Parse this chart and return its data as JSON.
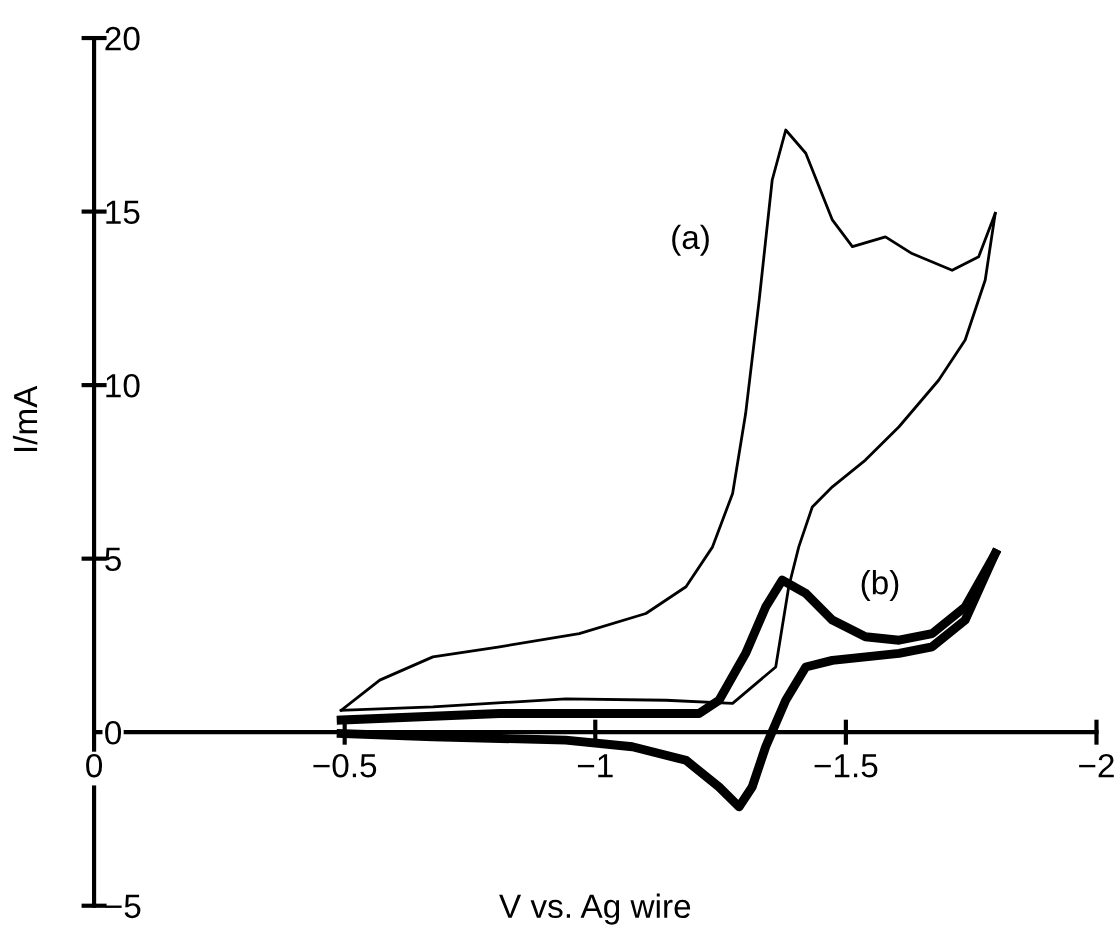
{
  "chart_data": {
    "type": "line",
    "xlabel": "V vs. Ag wire",
    "ylabel": "I/mA",
    "xlim": [
      0,
      -2
    ],
    "ylim": [
      -5,
      20
    ],
    "xticks": [
      0,
      {
        "value": -0.5,
        "label": "−0.5"
      },
      {
        "value": -1,
        "label": "−1"
      },
      {
        "value": -1.5,
        "label": "−1.5"
      },
      {
        "value": -2,
        "label": "−2"
      }
    ],
    "yticks": [
      {
        "value": -5,
        "label": "−5"
      },
      0,
      5,
      10,
      15,
      20
    ],
    "grid": false,
    "legend": false,
    "marker": "none",
    "line_style": "solid",
    "series": [
      {
        "color": "#000000",
        "x": [
          -0.493,
          -0.57,
          -0.676,
          -0.809,
          -0.968,
          -1.101,
          -1.181,
          -1.234,
          -1.274,
          -1.3,
          -1.327,
          -1.353,
          -1.38,
          -1.42,
          -1.473,
          -1.513,
          -1.579,
          -1.632,
          -1.712,
          -1.765,
          -1.798
        ],
        "values": [
          0.63,
          1.5,
          2.17,
          2.46,
          2.84,
          3.42,
          4.19,
          5.34,
          6.88,
          9.18,
          12.45,
          15.91,
          17.35,
          16.68,
          14.76,
          13.99,
          14.27,
          13.79,
          13.31,
          13.7,
          14.95
        ]
      },
      {
        "color": "#000000",
        "x": [
          -1.798,
          -1.778,
          -1.738,
          -1.685,
          -1.606,
          -1.539,
          -1.473,
          -1.433,
          -1.406,
          -1.386,
          -1.36,
          -1.274,
          -1.141,
          -0.941,
          -0.676,
          -0.493
        ],
        "values": [
          14.95,
          13.03,
          11.3,
          10.14,
          8.8,
          7.84,
          7.07,
          6.49,
          5.34,
          4.19,
          1.88,
          0.83,
          0.92,
          0.96,
          0.73,
          0.63
        ]
      },
      {
        "color": "#000000",
        "x": [
          -0.493,
          -0.809,
          -1.207,
          -1.247,
          -1.3,
          -1.34,
          -1.373,
          -1.42,
          -1.473,
          -1.539,
          -1.606,
          -1.672,
          -1.738,
          -1.798
        ],
        "values": [
          0.35,
          0.54,
          0.54,
          0.92,
          2.27,
          3.61,
          4.38,
          4.0,
          3.23,
          2.75,
          2.65,
          2.84,
          3.61,
          5.15
        ]
      },
      {
        "color": "#000000",
        "x": [
          -1.798,
          -1.738,
          -1.672,
          -1.606,
          -1.473,
          -1.42,
          -1.38,
          -1.34,
          -1.313,
          -1.287,
          -1.247,
          -1.181,
          -1.074,
          -0.941,
          -0.676,
          -0.493
        ],
        "values": [
          5.15,
          3.23,
          2.46,
          2.27,
          2.07,
          1.88,
          0.92,
          -0.42,
          -1.58,
          -2.15,
          -1.58,
          -0.81,
          -0.42,
          -0.23,
          -0.13,
          -0.04
        ]
      }
    ],
    "annotations": [
      "(a)",
      "(b)"
    ]
  }
}
